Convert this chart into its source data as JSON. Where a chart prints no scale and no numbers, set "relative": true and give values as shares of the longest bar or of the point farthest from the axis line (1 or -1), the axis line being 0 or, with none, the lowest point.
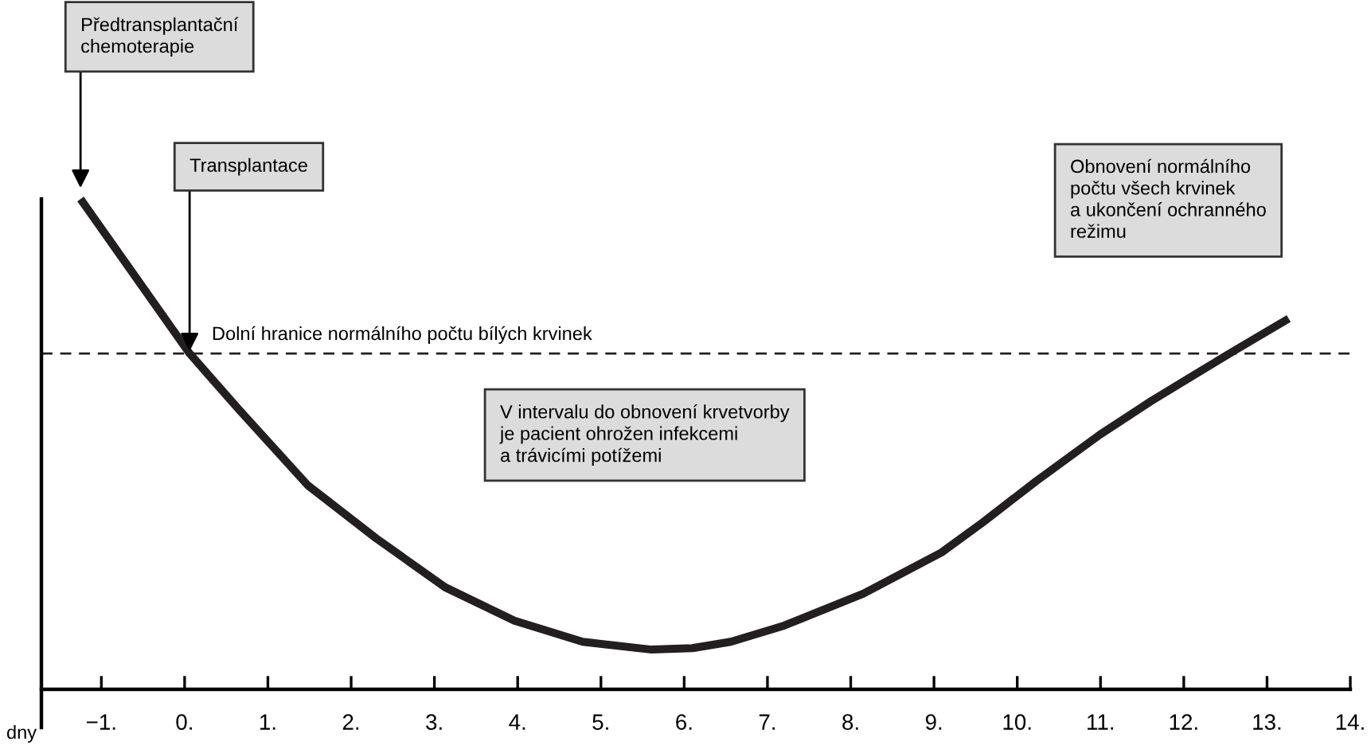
{
  "chart_data": {
    "type": "line",
    "relative": true,
    "xlabel": "dny",
    "x": [
      -1.25,
      0.06,
      0.65,
      1.48,
      2.3,
      3.13,
      3.96,
      4.78,
      5.61,
      6.1,
      6.56,
      7.2,
      8.15,
      9.09,
      9.59,
      10.23,
      10.99,
      11.61,
      12.24,
      12.62,
      13.26
    ],
    "series": [
      {
        "color": "#231f20",
        "values": [
          1.0,
          0.685,
          0.571,
          0.416,
          0.308,
          0.208,
          0.14,
          0.097,
          0.081,
          0.084,
          0.097,
          0.13,
          0.195,
          0.279,
          0.341,
          0.425,
          0.519,
          0.588,
          0.653,
          0.692,
          0.756
        ]
      }
    ],
    "xlim": [
      -1.72,
      14.0
    ],
    "xticks": [
      {
        "value": -1,
        "label": "−1."
      },
      {
        "value": 0,
        "label": "0."
      },
      {
        "value": 1,
        "label": "1."
      },
      {
        "value": 2,
        "label": "2."
      },
      {
        "value": 3,
        "label": "3."
      },
      {
        "value": 4,
        "label": "4."
      },
      {
        "value": 5,
        "label": "5."
      },
      {
        "value": 6,
        "label": "6."
      },
      {
        "value": 7,
        "label": "7."
      },
      {
        "value": 8,
        "label": "8."
      },
      {
        "value": 9,
        "label": "9."
      },
      {
        "value": 10,
        "label": "10."
      },
      {
        "value": 11,
        "label": "11."
      },
      {
        "value": 12,
        "label": "12."
      },
      {
        "value": 13,
        "label": "13."
      },
      {
        "value": 14,
        "label": "14."
      }
    ],
    "ref_lines": [
      {
        "axis": "y",
        "value": 0.685,
        "label": "Dolní hranice normálního počtu bílých krvinek",
        "line_style": "dashed",
        "color": "#231f20"
      }
    ],
    "annotations": [
      {
        "text": "Předtransplantační\nchemoterapie",
        "x": -1.25,
        "y": 1.0
      },
      {
        "text": "Transplantace",
        "x": 0.06,
        "y": 0.685
      },
      "Obnovení normálního\npočtu všech krvinek\na ukončení ochranného\nrežimu",
      "V intervalu do obnovení krvetvorby\nje pacient ohrožen infekcemi\na trávicími potížemi"
    ],
    "grid": false,
    "legend": false,
    "marker": "none",
    "line_style": "solid"
  }
}
